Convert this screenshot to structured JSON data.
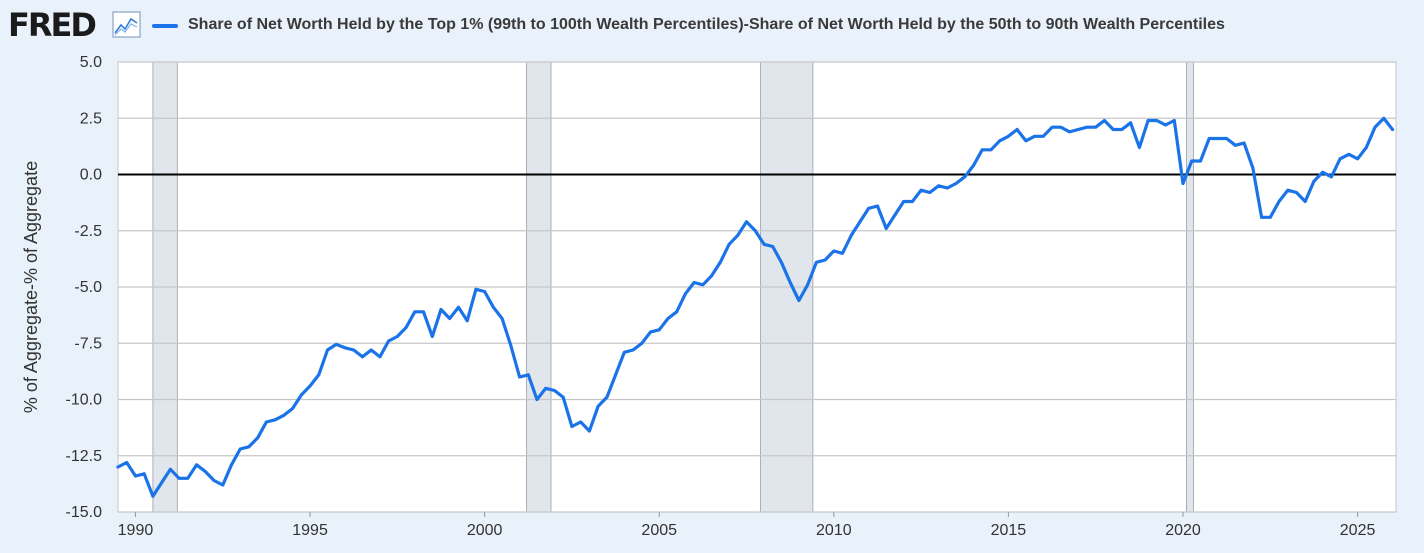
{
  "brand": {
    "name": "FRED",
    "icon": "line-chart-icon"
  },
  "colors": {
    "series": "#1a73e8",
    "recession": "#e1e6ec",
    "zero_line": "#000000",
    "grid": "#c7c7c7",
    "background": "#e9f1fa",
    "plot": "#ffffff"
  },
  "chart_data": {
    "type": "line",
    "title": "",
    "xlabel": "",
    "ylabel": "% of Aggregate-% of Aggregate",
    "xlim": [
      1989.5,
      2026.1
    ],
    "ylim": [
      -15.0,
      5.0
    ],
    "grid": true,
    "legend_position": "top",
    "y_ticks": [
      "5.0",
      "2.5",
      "0.0",
      "-2.5",
      "-5.0",
      "-7.5",
      "-10.0",
      "-12.5",
      "-15.0"
    ],
    "y_tick_values": [
      5.0,
      2.5,
      0.0,
      -2.5,
      -5.0,
      -7.5,
      -10.0,
      -12.5,
      -15.0
    ],
    "x_ticks": [
      "1990",
      "1995",
      "2000",
      "2005",
      "2010",
      "2015",
      "2020",
      "2025"
    ],
    "x_tick_values": [
      1990,
      1995,
      2000,
      2005,
      2010,
      2015,
      2020,
      2025
    ],
    "reference_line": 0.0,
    "recessions": [
      [
        1990.5,
        1991.2
      ],
      [
        2001.2,
        2001.9
      ],
      [
        2007.9,
        2009.4
      ],
      [
        2020.1,
        2020.3
      ]
    ],
    "series": [
      {
        "name": "Share of Net Worth Held by the Top 1% (99th to 100th Wealth Percentiles)-Share of Net Worth Held by the 50th to 90th Wealth Percentiles",
        "color": "#1a73e8",
        "x": [
          1989.5,
          1989.75,
          1990.0,
          1990.25,
          1990.5,
          1990.75,
          1991.0,
          1991.25,
          1991.5,
          1991.75,
          1992.0,
          1992.25,
          1992.5,
          1992.75,
          1993.0,
          1993.25,
          1993.5,
          1993.75,
          1994.0,
          1994.25,
          1994.5,
          1994.75,
          1995.0,
          1995.25,
          1995.5,
          1995.75,
          1996.0,
          1996.25,
          1996.5,
          1996.75,
          1997.0,
          1997.25,
          1997.5,
          1997.75,
          1998.0,
          1998.25,
          1998.5,
          1998.75,
          1999.0,
          1999.25,
          1999.5,
          1999.75,
          2000.0,
          2000.25,
          2000.5,
          2000.75,
          2001.0,
          2001.25,
          2001.5,
          2001.75,
          2002.0,
          2002.25,
          2002.5,
          2002.75,
          2003.0,
          2003.25,
          2003.5,
          2003.75,
          2004.0,
          2004.25,
          2004.5,
          2004.75,
          2005.0,
          2005.25,
          2005.5,
          2005.75,
          2006.0,
          2006.25,
          2006.5,
          2006.75,
          2007.0,
          2007.25,
          2007.5,
          2007.75,
          2008.0,
          2008.25,
          2008.5,
          2008.75,
          2009.0,
          2009.25,
          2009.5,
          2009.75,
          2010.0,
          2010.25,
          2010.5,
          2010.75,
          2011.0,
          2011.25,
          2011.5,
          2011.75,
          2012.0,
          2012.25,
          2012.5,
          2012.75,
          2013.0,
          2013.25,
          2013.5,
          2013.75,
          2014.0,
          2014.25,
          2014.5,
          2014.75,
          2015.0,
          2015.25,
          2015.5,
          2015.75,
          2016.0,
          2016.25,
          2016.5,
          2016.75,
          2017.0,
          2017.25,
          2017.5,
          2017.75,
          2018.0,
          2018.25,
          2018.5,
          2018.75,
          2019.0,
          2019.25,
          2019.5,
          2019.75,
          2020.0,
          2020.25,
          2020.5,
          2020.75,
          2021.0,
          2021.25,
          2021.5,
          2021.75,
          2022.0,
          2022.25,
          2022.5,
          2022.75,
          2023.0,
          2023.25,
          2023.5,
          2023.75,
          2024.0,
          2024.25,
          2024.5,
          2024.75,
          2025.0,
          2025.25,
          2025.5,
          2025.75,
          2026.0
        ],
        "y": [
          -13.0,
          -12.8,
          -13.4,
          -13.3,
          -14.3,
          -13.7,
          -13.1,
          -13.5,
          -13.5,
          -12.9,
          -13.2,
          -13.6,
          -13.8,
          -12.9,
          -12.2,
          -12.1,
          -11.7,
          -11.0,
          -10.9,
          -10.7,
          -10.4,
          -9.8,
          -9.4,
          -8.9,
          -7.8,
          -7.55,
          -7.7,
          -7.8,
          -8.1,
          -7.8,
          -8.1,
          -7.4,
          -7.2,
          -6.8,
          -6.1,
          -6.1,
          -7.2,
          -6.0,
          -6.4,
          -5.9,
          -6.5,
          -5.1,
          -5.2,
          -5.9,
          -6.4,
          -7.6,
          -9.0,
          -8.9,
          -10.0,
          -9.5,
          -9.6,
          -9.9,
          -11.2,
          -11.0,
          -11.4,
          -10.3,
          -9.9,
          -8.9,
          -7.9,
          -7.8,
          -7.5,
          -7.0,
          -6.9,
          -6.4,
          -6.1,
          -5.3,
          -4.8,
          -4.9,
          -4.5,
          -3.9,
          -3.1,
          -2.7,
          -2.1,
          -2.5,
          -3.1,
          -3.2,
          -3.9,
          -4.8,
          -5.6,
          -4.9,
          -3.9,
          -3.8,
          -3.4,
          -3.5,
          -2.7,
          -2.1,
          -1.5,
          -1.4,
          -2.4,
          -1.8,
          -1.2,
          -1.2,
          -0.7,
          -0.8,
          -0.5,
          -0.6,
          -0.4,
          -0.1,
          0.4,
          1.1,
          1.1,
          1.5,
          1.7,
          2.0,
          1.5,
          1.7,
          1.7,
          2.1,
          2.1,
          1.9,
          2.0,
          2.1,
          2.1,
          2.4,
          2.0,
          2.0,
          2.3,
          1.2,
          2.4,
          2.4,
          2.2,
          2.4,
          -0.4,
          0.6,
          0.6,
          1.6,
          1.6,
          1.6,
          1.3,
          1.4,
          0.3,
          -1.9,
          -1.9,
          -1.2,
          -0.7,
          -0.8,
          -1.2,
          -0.3,
          0.1,
          -0.1,
          0.7,
          0.9,
          0.7,
          1.2,
          2.1,
          2.5,
          2.0
        ]
      }
    ]
  }
}
